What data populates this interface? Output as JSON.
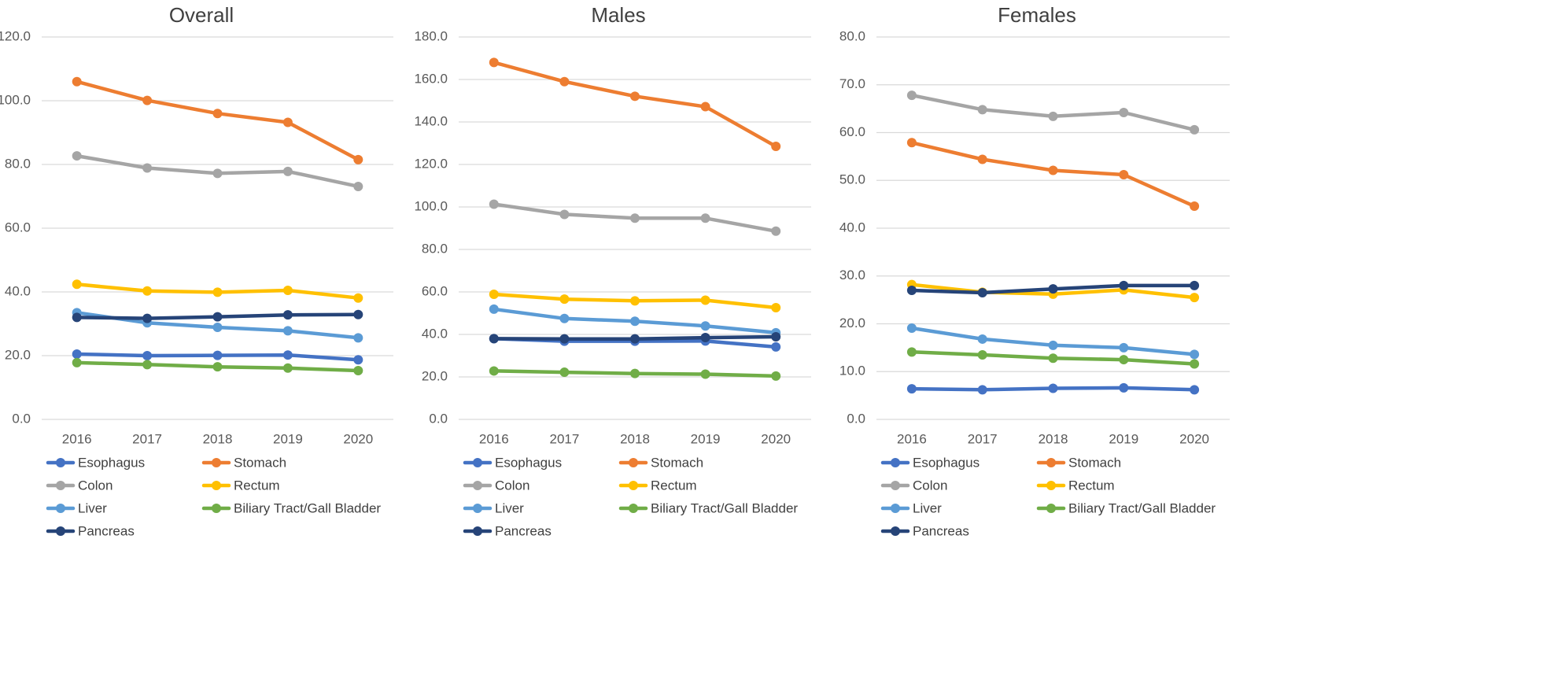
{
  "colors": {
    "Esophagus": "#4472c4",
    "Stomach": "#ed7d31",
    "Colon": "#a5a5a5",
    "Rectum": "#ffc000",
    "Liver": "#5b9bd5",
    "Biliary Tract/Gall Bladder": "#70ad47",
    "Pancreas": "#264478"
  },
  "chart_data": [
    {
      "type": "line",
      "title": "Overall",
      "categories": [
        "2016",
        "2017",
        "2018",
        "2019",
        "2020"
      ],
      "ylim": [
        0,
        120
      ],
      "yticks": [
        "0.0",
        "20.0",
        "40.0",
        "60.0",
        "80.0",
        "100.0",
        "120.0"
      ],
      "grid": true,
      "legend": "bottom",
      "series": [
        {
          "name": "Esophagus",
          "values": [
            20.5,
            20.0,
            20.1,
            20.2,
            18.7
          ]
        },
        {
          "name": "Stomach",
          "values": [
            106.0,
            100.1,
            96.0,
            93.2,
            81.5
          ]
        },
        {
          "name": "Colon",
          "values": [
            82.7,
            78.9,
            77.2,
            77.8,
            73.1
          ]
        },
        {
          "name": "Rectum",
          "values": [
            42.4,
            40.3,
            39.9,
            40.5,
            38.1
          ]
        },
        {
          "name": "Liver",
          "values": [
            33.5,
            30.3,
            28.9,
            27.8,
            25.6
          ]
        },
        {
          "name": "Biliary Tract/Gall Bladder",
          "values": [
            17.8,
            17.2,
            16.5,
            16.1,
            15.3
          ]
        },
        {
          "name": "Pancreas",
          "values": [
            32.0,
            31.7,
            32.2,
            32.8,
            32.9
          ]
        }
      ]
    },
    {
      "type": "line",
      "title": "Males",
      "categories": [
        "2016",
        "2017",
        "2018",
        "2019",
        "2020"
      ],
      "ylim": [
        0,
        180
      ],
      "yticks": [
        "0.0",
        "20.0",
        "40.0",
        "60.0",
        "80.0",
        "100.0",
        "120.0",
        "140.0",
        "160.0",
        "180.0"
      ],
      "grid": true,
      "legend": "bottom",
      "series": [
        {
          "name": "Esophagus",
          "values": [
            38.0,
            36.8,
            36.8,
            36.9,
            34.1
          ]
        },
        {
          "name": "Stomach",
          "values": [
            168.0,
            159.0,
            152.1,
            147.2,
            128.5
          ]
        },
        {
          "name": "Colon",
          "values": [
            101.3,
            96.5,
            94.7,
            94.7,
            88.6
          ]
        },
        {
          "name": "Rectum",
          "values": [
            58.9,
            56.6,
            55.8,
            56.1,
            52.6
          ]
        },
        {
          "name": "Liver",
          "values": [
            51.9,
            47.5,
            46.2,
            44.0,
            40.8
          ]
        },
        {
          "name": "Biliary Tract/Gall Bladder",
          "values": [
            22.8,
            22.2,
            21.6,
            21.3,
            20.4
          ]
        },
        {
          "name": "Pancreas",
          "values": [
            38.0,
            37.9,
            37.9,
            38.5,
            38.9
          ]
        }
      ]
    },
    {
      "type": "line",
      "title": "Females",
      "categories": [
        "2016",
        "2017",
        "2018",
        "2019",
        "2020"
      ],
      "ylim": [
        0,
        80
      ],
      "yticks": [
        "0.0",
        "10.0",
        "20.0",
        "30.0",
        "40.0",
        "50.0",
        "60.0",
        "70.0",
        "80.0"
      ],
      "grid": true,
      "legend": "bottom",
      "series": [
        {
          "name": "Esophagus",
          "values": [
            6.4,
            6.2,
            6.5,
            6.6,
            6.2
          ]
        },
        {
          "name": "Stomach",
          "values": [
            57.9,
            54.4,
            52.1,
            51.2,
            44.6
          ]
        },
        {
          "name": "Colon",
          "values": [
            67.8,
            64.8,
            63.4,
            64.2,
            60.6
          ]
        },
        {
          "name": "Rectum",
          "values": [
            28.2,
            26.6,
            26.2,
            27.1,
            25.5
          ]
        },
        {
          "name": "Liver",
          "values": [
            19.1,
            16.8,
            15.5,
            15.0,
            13.6
          ]
        },
        {
          "name": "Biliary Tract/Gall Bladder",
          "values": [
            14.1,
            13.5,
            12.8,
            12.5,
            11.6
          ]
        },
        {
          "name": "Pancreas",
          "values": [
            27.0,
            26.5,
            27.3,
            28.0,
            28.0
          ]
        }
      ]
    }
  ]
}
